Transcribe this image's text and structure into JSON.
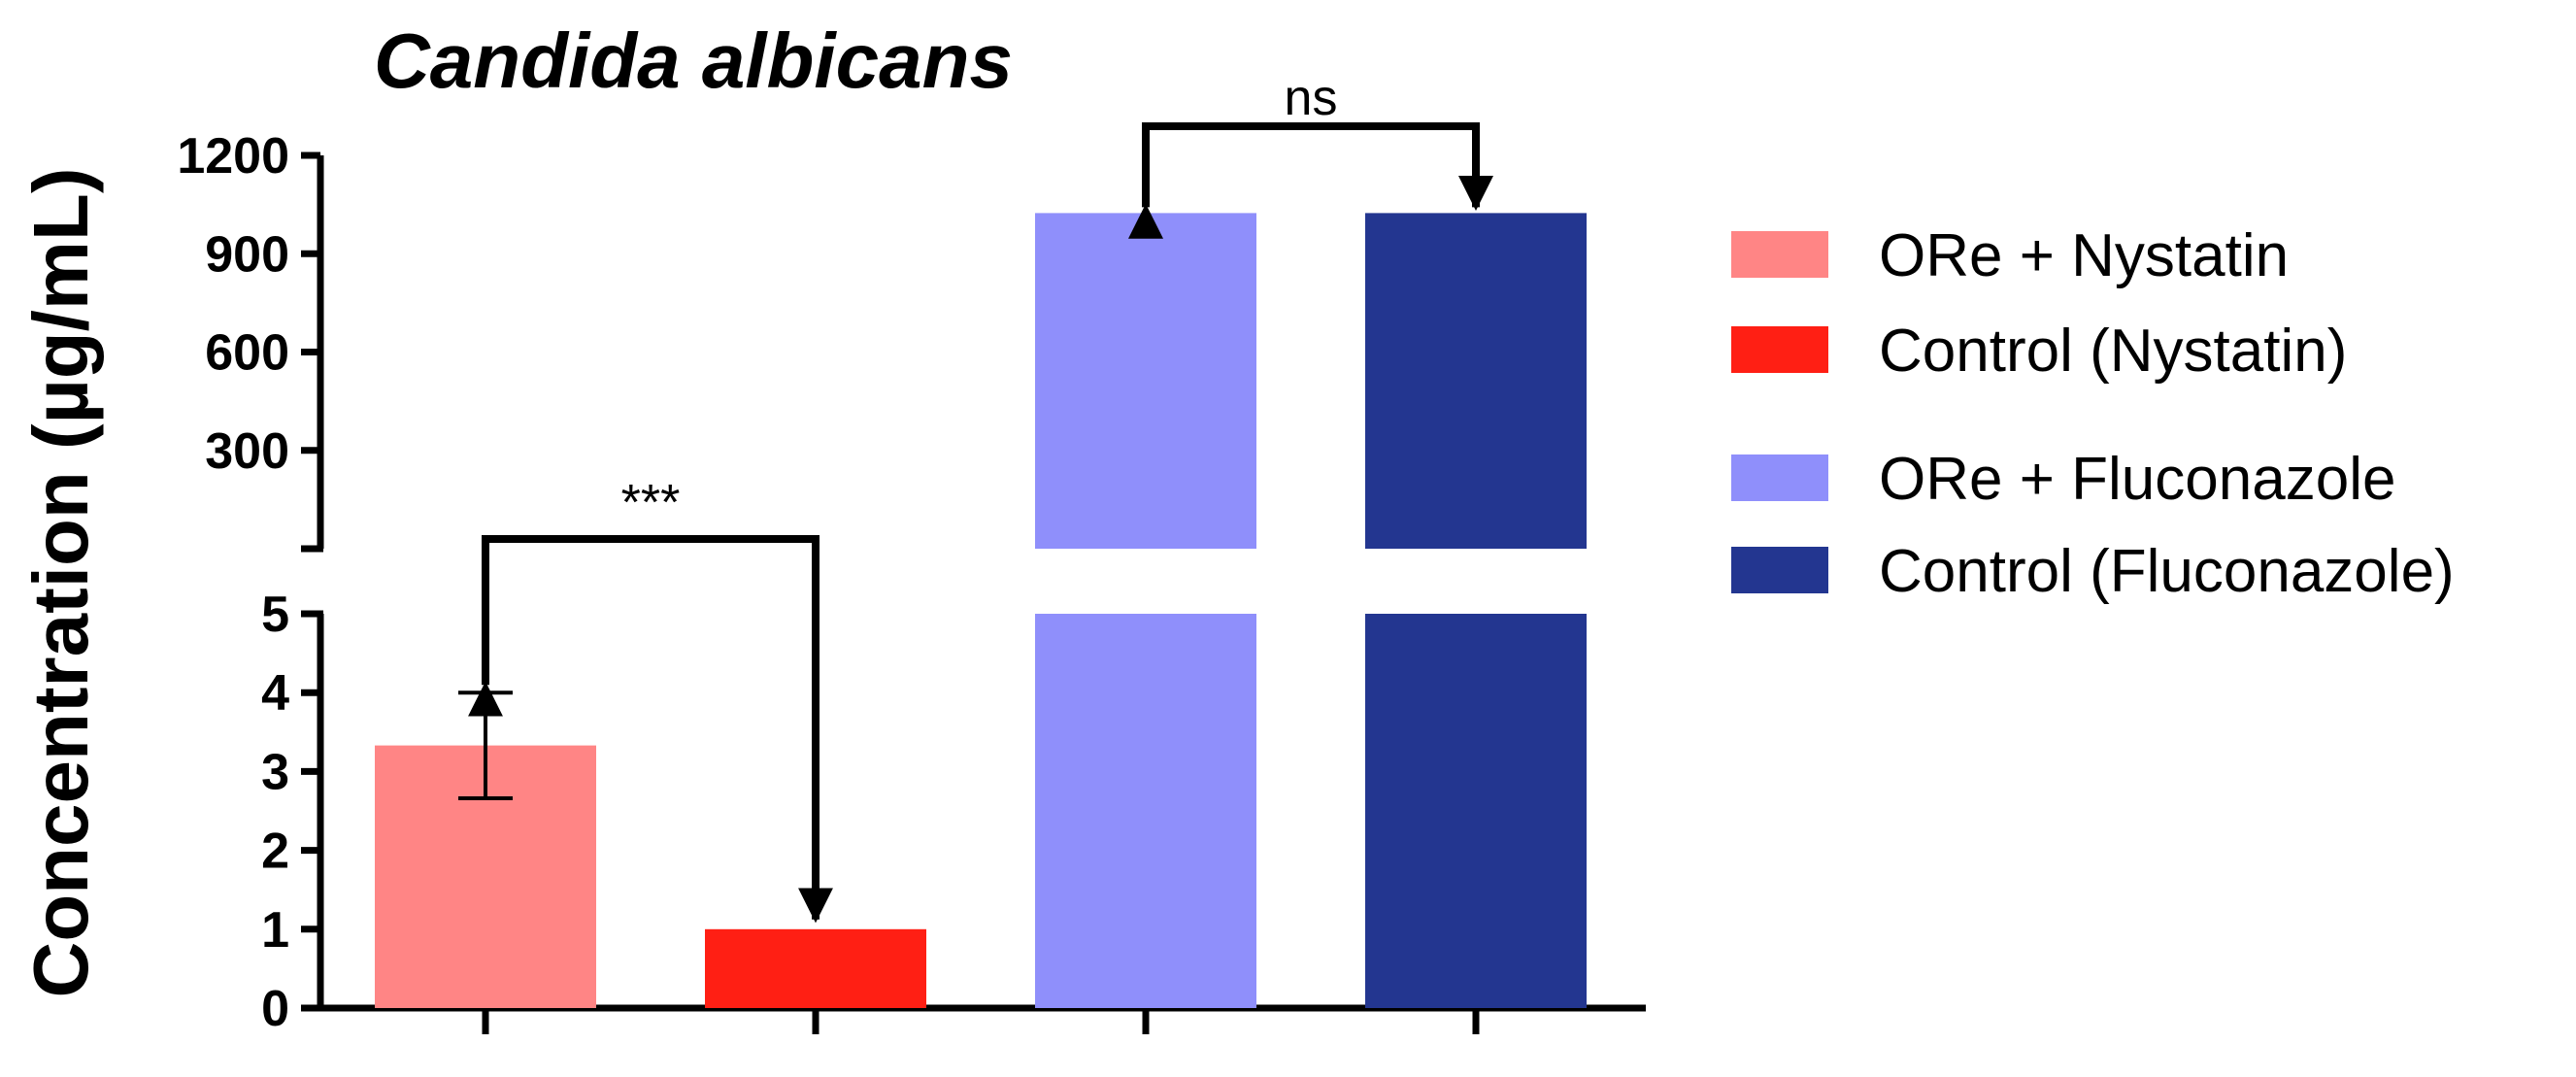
{
  "chart_data": {
    "type": "bar",
    "title": "Candida albicans",
    "ylabel": "Concentration (µg/mL)",
    "xlabel": "",
    "y_axis": "broken",
    "ylim_lower": [
      0,
      5
    ],
    "ylim_upper": [
      0,
      1200
    ],
    "yticks_lower": [
      "0",
      "1",
      "2",
      "3",
      "4",
      "5"
    ],
    "yticks_upper": [
      "300",
      "600",
      "900",
      "1200"
    ],
    "series": [
      {
        "name": "ORe + Nystatin",
        "value": 3.33,
        "error": 0.67,
        "color": "#FF8585"
      },
      {
        "name": "Control (Nystatin)",
        "value": 1,
        "color": "#FF1F14"
      },
      {
        "name": "ORe + Fluconazole",
        "value": 1024,
        "color": "#8F8FFB"
      },
      {
        "name": "Control (Fluconazole)",
        "value": 1024,
        "color": "#233690"
      }
    ],
    "comparisons": [
      {
        "between": [
          "ORe + Nystatin",
          "Control (Nystatin)"
        ],
        "label": "***"
      },
      {
        "between": [
          "ORe + Fluconazole",
          "Control (Fluconazole)"
        ],
        "label": "ns"
      }
    ],
    "legend_position": "right"
  }
}
